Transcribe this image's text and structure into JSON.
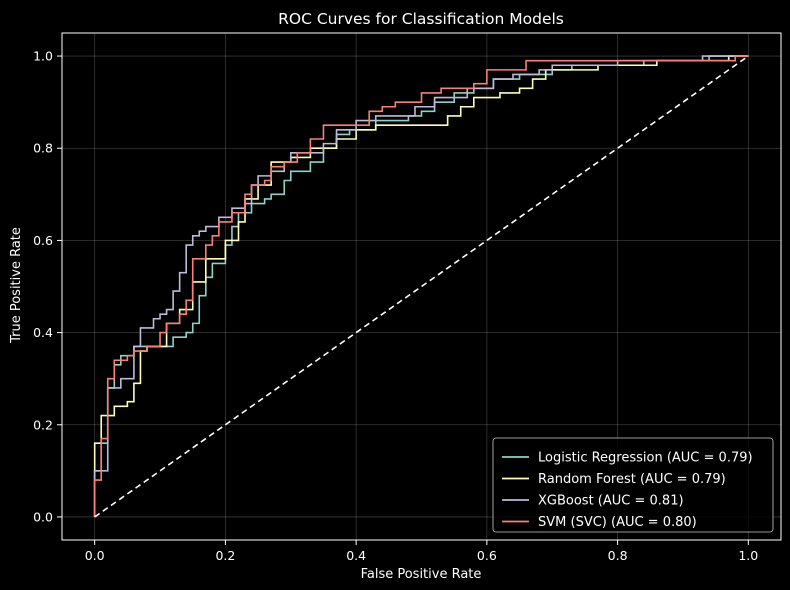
{
  "chart_data": {
    "type": "line",
    "title": "ROC Curves for Classification Models",
    "xlabel": "False Positive Rate",
    "ylabel": "True Positive Rate",
    "xlim": [
      -0.05,
      1.05
    ],
    "ylim": [
      -0.05,
      1.05
    ],
    "xticks": [
      "0.0",
      "0.2",
      "0.4",
      "0.6",
      "0.8",
      "1.0"
    ],
    "yticks": [
      "0.0",
      "0.2",
      "0.4",
      "0.6",
      "0.8",
      "1.0"
    ],
    "grid": true,
    "legend_position": "lower-right",
    "background": "#000000",
    "series": [
      {
        "name": "Logistic Regression (AUC = 0.79)",
        "color": "#8dd3c7",
        "points": [
          [
            0,
            0
          ],
          [
            0,
            0.1
          ],
          [
            0.01,
            0.1
          ],
          [
            0.01,
            0.16
          ],
          [
            0.02,
            0.16
          ],
          [
            0.02,
            0.28
          ],
          [
            0.03,
            0.28
          ],
          [
            0.03,
            0.33
          ],
          [
            0.04,
            0.33
          ],
          [
            0.04,
            0.35
          ],
          [
            0.06,
            0.35
          ],
          [
            0.06,
            0.37
          ],
          [
            0.12,
            0.37
          ],
          [
            0.12,
            0.39
          ],
          [
            0.14,
            0.39
          ],
          [
            0.14,
            0.4
          ],
          [
            0.15,
            0.4
          ],
          [
            0.15,
            0.42
          ],
          [
            0.16,
            0.42
          ],
          [
            0.16,
            0.48
          ],
          [
            0.17,
            0.48
          ],
          [
            0.17,
            0.52
          ],
          [
            0.18,
            0.52
          ],
          [
            0.18,
            0.55
          ],
          [
            0.2,
            0.55
          ],
          [
            0.2,
            0.59
          ],
          [
            0.21,
            0.59
          ],
          [
            0.21,
            0.63
          ],
          [
            0.22,
            0.63
          ],
          [
            0.22,
            0.66
          ],
          [
            0.24,
            0.66
          ],
          [
            0.24,
            0.68
          ],
          [
            0.26,
            0.68
          ],
          [
            0.26,
            0.69
          ],
          [
            0.27,
            0.69
          ],
          [
            0.27,
            0.7
          ],
          [
            0.29,
            0.7
          ],
          [
            0.29,
            0.73
          ],
          [
            0.3,
            0.73
          ],
          [
            0.3,
            0.75
          ],
          [
            0.33,
            0.75
          ],
          [
            0.33,
            0.77
          ],
          [
            0.35,
            0.77
          ],
          [
            0.35,
            0.8
          ],
          [
            0.37,
            0.8
          ],
          [
            0.37,
            0.83
          ],
          [
            0.39,
            0.83
          ],
          [
            0.39,
            0.84
          ],
          [
            0.43,
            0.84
          ],
          [
            0.43,
            0.86
          ],
          [
            0.48,
            0.86
          ],
          [
            0.48,
            0.87
          ],
          [
            0.5,
            0.87
          ],
          [
            0.5,
            0.88
          ],
          [
            0.52,
            0.88
          ],
          [
            0.52,
            0.9
          ],
          [
            0.55,
            0.9
          ],
          [
            0.55,
            0.92
          ],
          [
            0.58,
            0.92
          ],
          [
            0.58,
            0.93
          ],
          [
            0.61,
            0.93
          ],
          [
            0.61,
            0.95
          ],
          [
            0.65,
            0.95
          ],
          [
            0.65,
            0.96
          ],
          [
            0.7,
            0.96
          ],
          [
            0.7,
            0.97
          ],
          [
            0.73,
            0.97
          ],
          [
            0.73,
            0.98
          ],
          [
            0.84,
            0.98
          ],
          [
            0.84,
            0.99
          ],
          [
            0.94,
            0.99
          ],
          [
            0.94,
            1.0
          ],
          [
            1.0,
            1.0
          ]
        ]
      },
      {
        "name": "Random Forest (AUC = 0.79)",
        "color": "#ffffb3",
        "points": [
          [
            0,
            0
          ],
          [
            0,
            0.16
          ],
          [
            0.01,
            0.16
          ],
          [
            0.01,
            0.22
          ],
          [
            0.03,
            0.22
          ],
          [
            0.03,
            0.24
          ],
          [
            0.05,
            0.24
          ],
          [
            0.05,
            0.25
          ],
          [
            0.06,
            0.25
          ],
          [
            0.06,
            0.29
          ],
          [
            0.07,
            0.29
          ],
          [
            0.07,
            0.36
          ],
          [
            0.08,
            0.36
          ],
          [
            0.08,
            0.37
          ],
          [
            0.11,
            0.37
          ],
          [
            0.11,
            0.42
          ],
          [
            0.13,
            0.42
          ],
          [
            0.13,
            0.45
          ],
          [
            0.15,
            0.45
          ],
          [
            0.15,
            0.51
          ],
          [
            0.17,
            0.51
          ],
          [
            0.17,
            0.56
          ],
          [
            0.2,
            0.56
          ],
          [
            0.2,
            0.6
          ],
          [
            0.22,
            0.6
          ],
          [
            0.22,
            0.64
          ],
          [
            0.23,
            0.64
          ],
          [
            0.23,
            0.69
          ],
          [
            0.25,
            0.69
          ],
          [
            0.25,
            0.72
          ],
          [
            0.27,
            0.72
          ],
          [
            0.27,
            0.77
          ],
          [
            0.3,
            0.77
          ],
          [
            0.3,
            0.78
          ],
          [
            0.33,
            0.78
          ],
          [
            0.33,
            0.8
          ],
          [
            0.37,
            0.8
          ],
          [
            0.37,
            0.82
          ],
          [
            0.4,
            0.82
          ],
          [
            0.4,
            0.84
          ],
          [
            0.43,
            0.84
          ],
          [
            0.43,
            0.85
          ],
          [
            0.54,
            0.85
          ],
          [
            0.54,
            0.87
          ],
          [
            0.56,
            0.87
          ],
          [
            0.56,
            0.89
          ],
          [
            0.58,
            0.89
          ],
          [
            0.58,
            0.91
          ],
          [
            0.62,
            0.91
          ],
          [
            0.62,
            0.92
          ],
          [
            0.65,
            0.92
          ],
          [
            0.65,
            0.93
          ],
          [
            0.67,
            0.93
          ],
          [
            0.67,
            0.95
          ],
          [
            0.69,
            0.95
          ],
          [
            0.69,
            0.97
          ],
          [
            0.77,
            0.97
          ],
          [
            0.77,
            0.98
          ],
          [
            0.86,
            0.98
          ],
          [
            0.86,
            0.99
          ],
          [
            0.97,
            0.99
          ],
          [
            0.97,
            1.0
          ],
          [
            1.0,
            1.0
          ]
        ]
      },
      {
        "name": "XGBoost (AUC = 0.81)",
        "color": "#bebada",
        "points": [
          [
            0,
            0
          ],
          [
            0,
            0.1
          ],
          [
            0.02,
            0.1
          ],
          [
            0.02,
            0.28
          ],
          [
            0.04,
            0.28
          ],
          [
            0.04,
            0.3
          ],
          [
            0.06,
            0.3
          ],
          [
            0.06,
            0.37
          ],
          [
            0.07,
            0.37
          ],
          [
            0.07,
            0.41
          ],
          [
            0.09,
            0.41
          ],
          [
            0.09,
            0.43
          ],
          [
            0.1,
            0.43
          ],
          [
            0.1,
            0.44
          ],
          [
            0.11,
            0.44
          ],
          [
            0.11,
            0.45
          ],
          [
            0.12,
            0.45
          ],
          [
            0.12,
            0.49
          ],
          [
            0.13,
            0.49
          ],
          [
            0.13,
            0.53
          ],
          [
            0.14,
            0.53
          ],
          [
            0.14,
            0.59
          ],
          [
            0.15,
            0.59
          ],
          [
            0.15,
            0.61
          ],
          [
            0.16,
            0.61
          ],
          [
            0.16,
            0.62
          ],
          [
            0.17,
            0.62
          ],
          [
            0.17,
            0.63
          ],
          [
            0.19,
            0.63
          ],
          [
            0.19,
            0.65
          ],
          [
            0.21,
            0.65
          ],
          [
            0.21,
            0.67
          ],
          [
            0.23,
            0.67
          ],
          [
            0.23,
            0.68
          ],
          [
            0.24,
            0.68
          ],
          [
            0.24,
            0.72
          ],
          [
            0.25,
            0.72
          ],
          [
            0.25,
            0.74
          ],
          [
            0.27,
            0.74
          ],
          [
            0.27,
            0.75
          ],
          [
            0.29,
            0.75
          ],
          [
            0.29,
            0.77
          ],
          [
            0.3,
            0.77
          ],
          [
            0.3,
            0.79
          ],
          [
            0.35,
            0.79
          ],
          [
            0.35,
            0.81
          ],
          [
            0.37,
            0.81
          ],
          [
            0.37,
            0.84
          ],
          [
            0.4,
            0.84
          ],
          [
            0.4,
            0.86
          ],
          [
            0.43,
            0.86
          ],
          [
            0.43,
            0.87
          ],
          [
            0.49,
            0.87
          ],
          [
            0.49,
            0.89
          ],
          [
            0.52,
            0.89
          ],
          [
            0.52,
            0.91
          ],
          [
            0.57,
            0.91
          ],
          [
            0.57,
            0.93
          ],
          [
            0.61,
            0.93
          ],
          [
            0.61,
            0.95
          ],
          [
            0.64,
            0.95
          ],
          [
            0.64,
            0.96
          ],
          [
            0.68,
            0.96
          ],
          [
            0.68,
            0.97
          ],
          [
            0.7,
            0.97
          ],
          [
            0.7,
            0.98
          ],
          [
            0.8,
            0.98
          ],
          [
            0.8,
            0.99
          ],
          [
            0.93,
            0.99
          ],
          [
            0.93,
            1.0
          ],
          [
            1.0,
            1.0
          ]
        ]
      },
      {
        "name": "SVM (SVC) (AUC = 0.80)",
        "color": "#fb8072",
        "points": [
          [
            0,
            0
          ],
          [
            0,
            0.08
          ],
          [
            0.01,
            0.08
          ],
          [
            0.01,
            0.17
          ],
          [
            0.02,
            0.17
          ],
          [
            0.02,
            0.3
          ],
          [
            0.03,
            0.3
          ],
          [
            0.03,
            0.34
          ],
          [
            0.05,
            0.34
          ],
          [
            0.05,
            0.35
          ],
          [
            0.06,
            0.35
          ],
          [
            0.06,
            0.36
          ],
          [
            0.08,
            0.36
          ],
          [
            0.08,
            0.37
          ],
          [
            0.1,
            0.37
          ],
          [
            0.1,
            0.4
          ],
          [
            0.11,
            0.4
          ],
          [
            0.11,
            0.42
          ],
          [
            0.13,
            0.42
          ],
          [
            0.13,
            0.44
          ],
          [
            0.14,
            0.44
          ],
          [
            0.14,
            0.47
          ],
          [
            0.15,
            0.47
          ],
          [
            0.15,
            0.56
          ],
          [
            0.17,
            0.56
          ],
          [
            0.17,
            0.59
          ],
          [
            0.18,
            0.59
          ],
          [
            0.18,
            0.61
          ],
          [
            0.19,
            0.61
          ],
          [
            0.19,
            0.64
          ],
          [
            0.21,
            0.64
          ],
          [
            0.21,
            0.66
          ],
          [
            0.23,
            0.66
          ],
          [
            0.23,
            0.7
          ],
          [
            0.24,
            0.7
          ],
          [
            0.24,
            0.72
          ],
          [
            0.26,
            0.72
          ],
          [
            0.26,
            0.73
          ],
          [
            0.27,
            0.73
          ],
          [
            0.27,
            0.76
          ],
          [
            0.29,
            0.76
          ],
          [
            0.29,
            0.77
          ],
          [
            0.31,
            0.77
          ],
          [
            0.31,
            0.79
          ],
          [
            0.33,
            0.79
          ],
          [
            0.33,
            0.82
          ],
          [
            0.35,
            0.82
          ],
          [
            0.35,
            0.85
          ],
          [
            0.42,
            0.85
          ],
          [
            0.42,
            0.88
          ],
          [
            0.44,
            0.88
          ],
          [
            0.44,
            0.89
          ],
          [
            0.46,
            0.89
          ],
          [
            0.46,
            0.9
          ],
          [
            0.5,
            0.9
          ],
          [
            0.5,
            0.92
          ],
          [
            0.53,
            0.92
          ],
          [
            0.53,
            0.93
          ],
          [
            0.58,
            0.93
          ],
          [
            0.58,
            0.94
          ],
          [
            0.6,
            0.94
          ],
          [
            0.6,
            0.97
          ],
          [
            0.66,
            0.97
          ],
          [
            0.66,
            0.99
          ],
          [
            0.98,
            0.99
          ],
          [
            0.98,
            1.0
          ],
          [
            1.0,
            1.0
          ]
        ]
      },
      {
        "name": "",
        "color": "#ffffff",
        "dashed": true,
        "points": [
          [
            0,
            0
          ],
          [
            1,
            1
          ]
        ]
      }
    ]
  }
}
